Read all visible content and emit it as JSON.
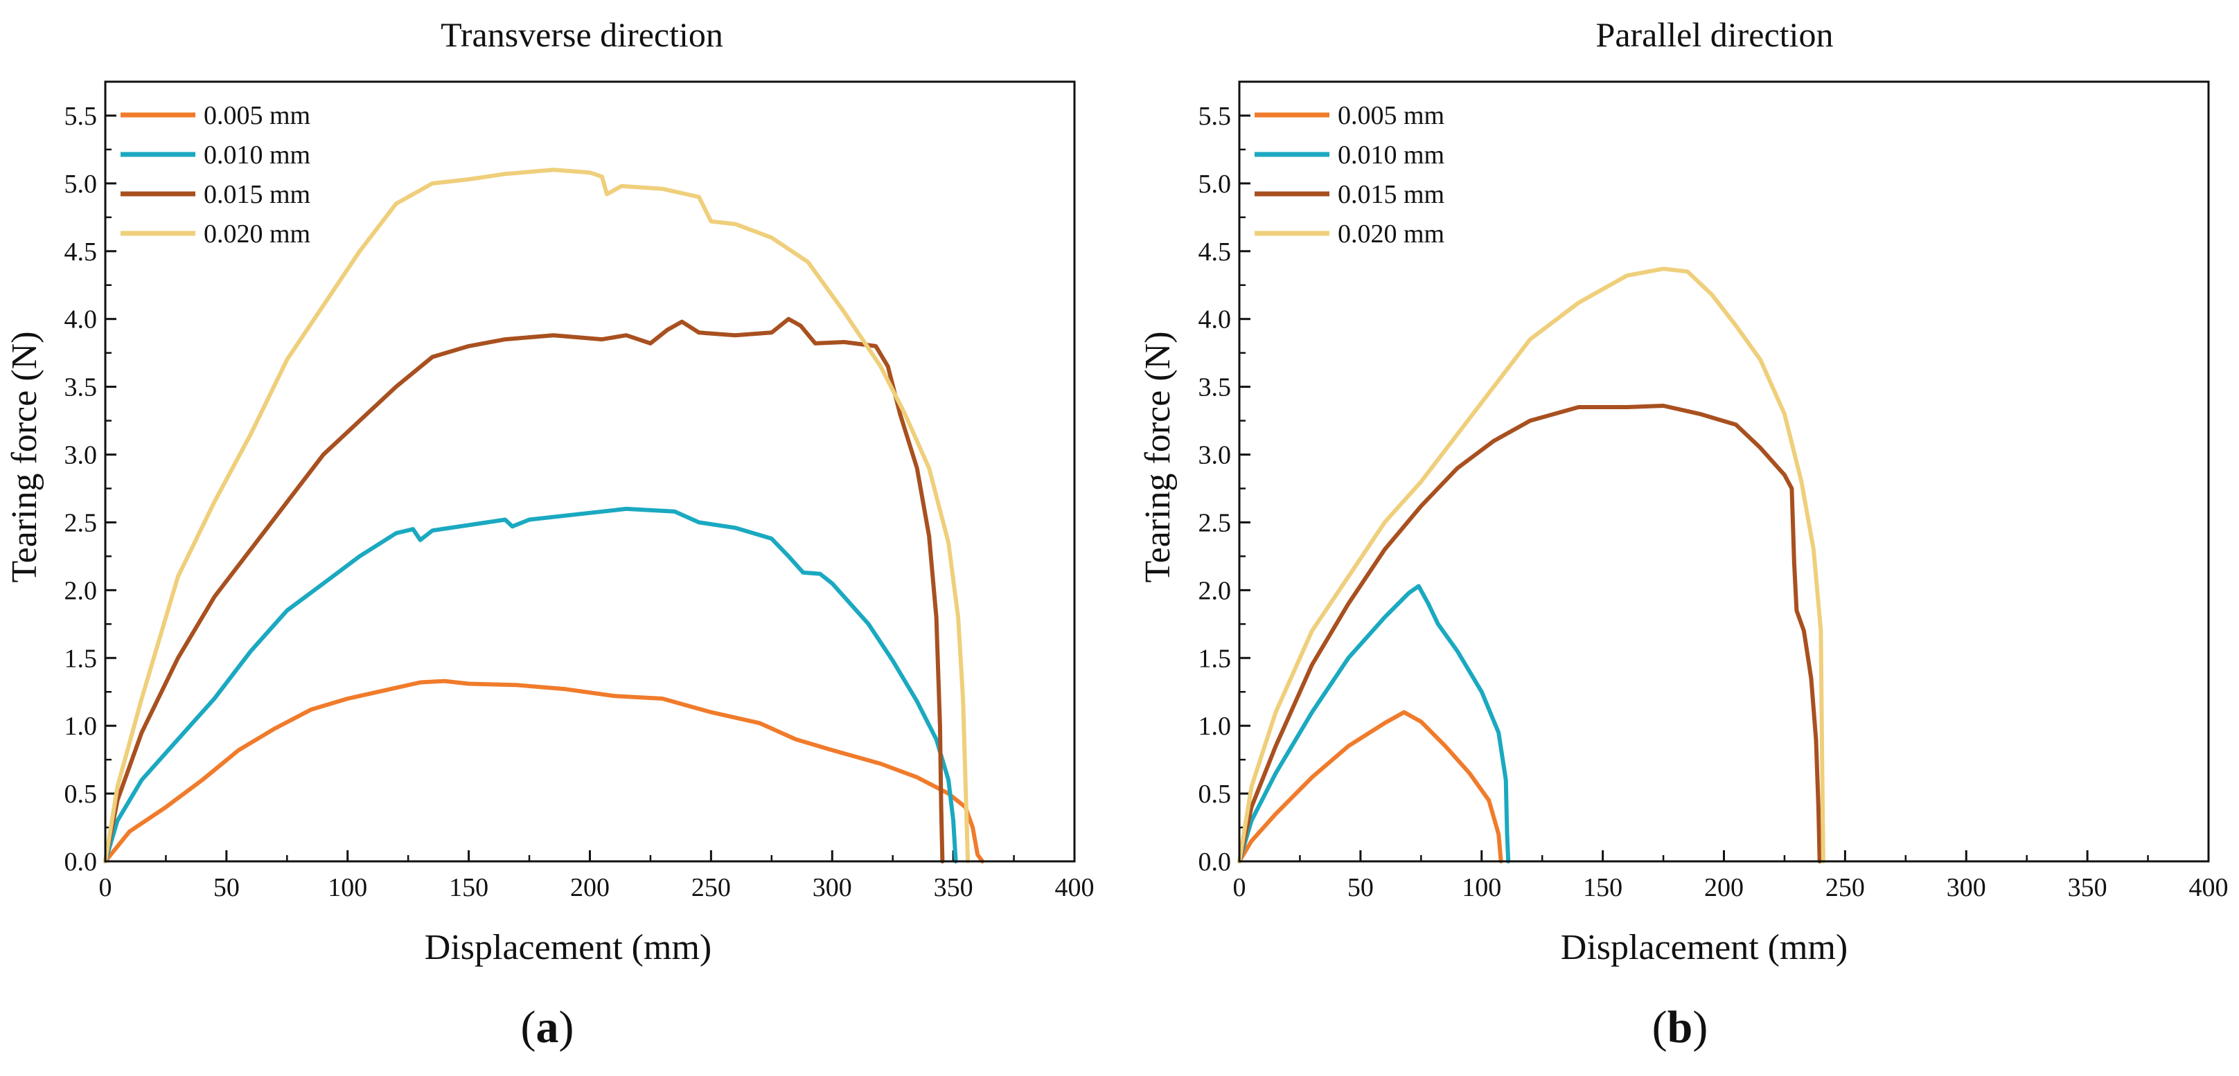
{
  "chart_data": [
    {
      "type": "line",
      "panel": "(a)",
      "panel_letter": "a",
      "title": "Transverse direction",
      "xlabel": "Displacement (mm)",
      "ylabel": "Tearing force (N)",
      "xlim": [
        0,
        400
      ],
      "ylim": [
        0,
        5.75
      ],
      "xticks": [
        0,
        50,
        100,
        150,
        200,
        250,
        300,
        350,
        400
      ],
      "xtick_labels": [
        "0",
        "50",
        "100",
        "150",
        "200",
        "250",
        "300",
        "350",
        "400"
      ],
      "yticks": [
        0,
        0.5,
        1,
        1.5,
        2,
        2.5,
        3,
        3.5,
        4,
        4.5,
        5,
        5.5
      ],
      "ytick_labels": [
        "0.0",
        "0.5",
        "1.0",
        "1.5",
        "2.0",
        "2.5",
        "3.0",
        "3.5",
        "4.0",
        "4.5",
        "5.0",
        "5.5"
      ],
      "legend_position": "top-left",
      "series": [
        {
          "name": "0.005 mm",
          "color": "#f07b2b",
          "points": [
            [
              0,
              0
            ],
            [
              10,
              0.22
            ],
            [
              25,
              0.4
            ],
            [
              40,
              0.6
            ],
            [
              55,
              0.82
            ],
            [
              70,
              0.98
            ],
            [
              85,
              1.12
            ],
            [
              100,
              1.2
            ],
            [
              115,
              1.26
            ],
            [
              130,
              1.32
            ],
            [
              140,
              1.33
            ],
            [
              150,
              1.31
            ],
            [
              170,
              1.3
            ],
            [
              190,
              1.27
            ],
            [
              210,
              1.22
            ],
            [
              230,
              1.2
            ],
            [
              250,
              1.1
            ],
            [
              270,
              1.02
            ],
            [
              285,
              0.9
            ],
            [
              300,
              0.82
            ],
            [
              320,
              0.72
            ],
            [
              335,
              0.62
            ],
            [
              348,
              0.5
            ],
            [
              355,
              0.4
            ],
            [
              358,
              0.25
            ],
            [
              360,
              0.05
            ],
            [
              362,
              0
            ]
          ]
        },
        {
          "name": "0.010 mm",
          "color": "#1aa9c0",
          "points": [
            [
              0,
              0
            ],
            [
              5,
              0.3
            ],
            [
              15,
              0.6
            ],
            [
              30,
              0.9
            ],
            [
              45,
              1.2
            ],
            [
              60,
              1.55
            ],
            [
              75,
              1.85
            ],
            [
              90,
              2.05
            ],
            [
              105,
              2.25
            ],
            [
              120,
              2.42
            ],
            [
              127,
              2.45
            ],
            [
              130,
              2.37
            ],
            [
              135,
              2.44
            ],
            [
              150,
              2.48
            ],
            [
              165,
              2.52
            ],
            [
              168,
              2.47
            ],
            [
              175,
              2.52
            ],
            [
              195,
              2.56
            ],
            [
              215,
              2.6
            ],
            [
              235,
              2.58
            ],
            [
              245,
              2.5
            ],
            [
              260,
              2.46
            ],
            [
              275,
              2.38
            ],
            [
              282,
              2.25
            ],
            [
              288,
              2.13
            ],
            [
              295,
              2.12
            ],
            [
              300,
              2.05
            ],
            [
              315,
              1.75
            ],
            [
              325,
              1.48
            ],
            [
              335,
              1.18
            ],
            [
              343,
              0.9
            ],
            [
              348,
              0.6
            ],
            [
              350,
              0.3
            ],
            [
              351,
              0
            ]
          ]
        },
        {
          "name": "0.015 mm",
          "color": "#a8501f",
          "points": [
            [
              0,
              0
            ],
            [
              5,
              0.45
            ],
            [
              15,
              0.95
            ],
            [
              30,
              1.5
            ],
            [
              45,
              1.95
            ],
            [
              60,
              2.3
            ],
            [
              75,
              2.65
            ],
            [
              90,
              3.0
            ],
            [
              105,
              3.25
            ],
            [
              120,
              3.5
            ],
            [
              135,
              3.72
            ],
            [
              150,
              3.8
            ],
            [
              165,
              3.85
            ],
            [
              185,
              3.88
            ],
            [
              205,
              3.85
            ],
            [
              215,
              3.88
            ],
            [
              225,
              3.82
            ],
            [
              232,
              3.92
            ],
            [
              238,
              3.98
            ],
            [
              245,
              3.9
            ],
            [
              260,
              3.88
            ],
            [
              275,
              3.9
            ],
            [
              282,
              4.0
            ],
            [
              287,
              3.95
            ],
            [
              293,
              3.82
            ],
            [
              305,
              3.83
            ],
            [
              318,
              3.8
            ],
            [
              323,
              3.65
            ],
            [
              328,
              3.3
            ],
            [
              335,
              2.9
            ],
            [
              340,
              2.4
            ],
            [
              343,
              1.8
            ],
            [
              344.5,
              1.0
            ],
            [
              345,
              0.4
            ],
            [
              345.5,
              0
            ]
          ]
        },
        {
          "name": "0.020 mm",
          "color": "#efcf7b",
          "points": [
            [
              0,
              0
            ],
            [
              5,
              0.55
            ],
            [
              15,
              1.2
            ],
            [
              30,
              2.1
            ],
            [
              45,
              2.65
            ],
            [
              60,
              3.15
            ],
            [
              75,
              3.7
            ],
            [
              90,
              4.1
            ],
            [
              105,
              4.5
            ],
            [
              120,
              4.85
            ],
            [
              135,
              5.0
            ],
            [
              150,
              5.03
            ],
            [
              165,
              5.07
            ],
            [
              185,
              5.1
            ],
            [
              200,
              5.08
            ],
            [
              205,
              5.05
            ],
            [
              207,
              4.92
            ],
            [
              213,
              4.98
            ],
            [
              230,
              4.96
            ],
            [
              245,
              4.9
            ],
            [
              250,
              4.72
            ],
            [
              260,
              4.7
            ],
            [
              275,
              4.6
            ],
            [
              290,
              4.42
            ],
            [
              305,
              4.05
            ],
            [
              320,
              3.65
            ],
            [
              330,
              3.3
            ],
            [
              340,
              2.9
            ],
            [
              348,
              2.35
            ],
            [
              352,
              1.8
            ],
            [
              354,
              1.2
            ],
            [
              355,
              0.6
            ],
            [
              356,
              0
            ]
          ]
        }
      ]
    },
    {
      "type": "line",
      "panel": "(b)",
      "panel_letter": "b",
      "title": "Parallel direction",
      "xlabel": "Displacement (mm)",
      "ylabel": "Tearing force (N)",
      "xlim": [
        0,
        400
      ],
      "ylim": [
        0,
        5.75
      ],
      "xticks": [
        0,
        50,
        100,
        150,
        200,
        250,
        300,
        350,
        400
      ],
      "xtick_labels": [
        "0",
        "50",
        "100",
        "150",
        "200",
        "250",
        "300",
        "350",
        "400"
      ],
      "yticks": [
        0,
        0.5,
        1,
        1.5,
        2,
        2.5,
        3,
        3.5,
        4,
        4.5,
        5,
        5.5
      ],
      "ytick_labels": [
        "0.0",
        "0.5",
        "1.0",
        "1.5",
        "2.0",
        "2.5",
        "3.0",
        "3.5",
        "4.0",
        "4.5",
        "5.0",
        "5.5"
      ],
      "legend_position": "top-left",
      "series": [
        {
          "name": "0.005 mm",
          "color": "#f07b2b",
          "points": [
            [
              0,
              0
            ],
            [
              5,
              0.15
            ],
            [
              15,
              0.35
            ],
            [
              30,
              0.62
            ],
            [
              45,
              0.85
            ],
            [
              60,
              1.02
            ],
            [
              68,
              1.1
            ],
            [
              75,
              1.03
            ],
            [
              85,
              0.85
            ],
            [
              95,
              0.65
            ],
            [
              103,
              0.45
            ],
            [
              107,
              0.2
            ],
            [
              108,
              0
            ]
          ]
        },
        {
          "name": "0.010 mm",
          "color": "#1aa9c0",
          "points": [
            [
              0,
              0
            ],
            [
              5,
              0.3
            ],
            [
              15,
              0.65
            ],
            [
              30,
              1.1
            ],
            [
              45,
              1.5
            ],
            [
              60,
              1.8
            ],
            [
              70,
              1.98
            ],
            [
              74,
              2.03
            ],
            [
              78,
              1.9
            ],
            [
              82,
              1.75
            ],
            [
              90,
              1.55
            ],
            [
              100,
              1.25
            ],
            [
              107,
              0.95
            ],
            [
              110,
              0.6
            ],
            [
              110.5,
              0.2
            ],
            [
              111,
              0
            ]
          ]
        },
        {
          "name": "0.015 mm",
          "color": "#a8501f",
          "points": [
            [
              0,
              0
            ],
            [
              5,
              0.4
            ],
            [
              15,
              0.85
            ],
            [
              30,
              1.45
            ],
            [
              45,
              1.9
            ],
            [
              60,
              2.3
            ],
            [
              75,
              2.62
            ],
            [
              90,
              2.9
            ],
            [
              105,
              3.1
            ],
            [
              120,
              3.25
            ],
            [
              140,
              3.35
            ],
            [
              160,
              3.35
            ],
            [
              175,
              3.36
            ],
            [
              190,
              3.3
            ],
            [
              205,
              3.22
            ],
            [
              215,
              3.05
            ],
            [
              225,
              2.85
            ],
            [
              228,
              2.75
            ],
            [
              229,
              2.2
            ],
            [
              230,
              1.85
            ],
            [
              233,
              1.7
            ],
            [
              236,
              1.35
            ],
            [
              238,
              0.9
            ],
            [
              239,
              0.4
            ],
            [
              239.5,
              0
            ]
          ]
        },
        {
          "name": "0.020 mm",
          "color": "#efcf7b",
          "points": [
            [
              0,
              0
            ],
            [
              5,
              0.55
            ],
            [
              15,
              1.1
            ],
            [
              30,
              1.7
            ],
            [
              45,
              2.1
            ],
            [
              60,
              2.5
            ],
            [
              75,
              2.8
            ],
            [
              90,
              3.15
            ],
            [
              105,
              3.5
            ],
            [
              120,
              3.85
            ],
            [
              140,
              4.12
            ],
            [
              160,
              4.32
            ],
            [
              175,
              4.37
            ],
            [
              185,
              4.35
            ],
            [
              195,
              4.18
            ],
            [
              205,
              3.95
            ],
            [
              215,
              3.7
            ],
            [
              225,
              3.3
            ],
            [
              232,
              2.8
            ],
            [
              237,
              2.3
            ],
            [
              240,
              1.7
            ],
            [
              240.5,
              0.8
            ],
            [
              241,
              0
            ]
          ]
        }
      ]
    }
  ]
}
